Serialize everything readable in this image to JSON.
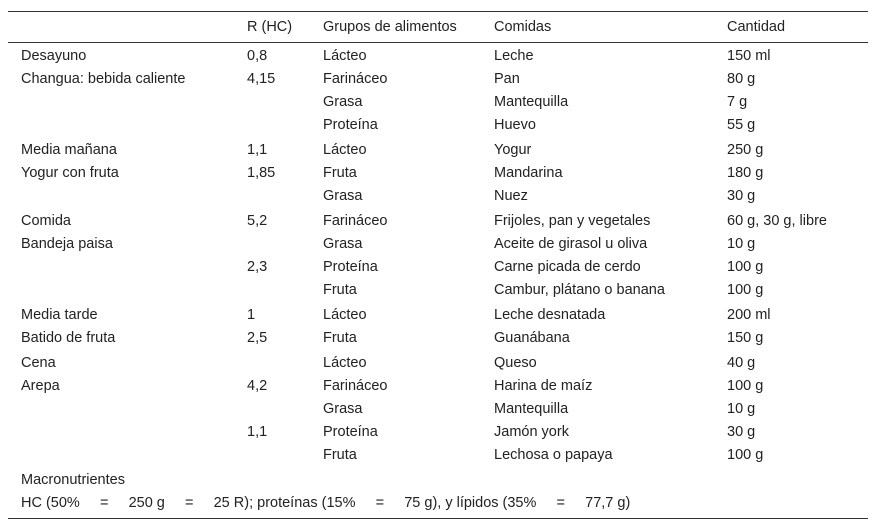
{
  "table": {
    "header": [
      null,
      "R (HC)",
      "Grupos de alimentos",
      "Comidas",
      "Cantidad"
    ],
    "rows": [
      [
        "Desayuno",
        "0,8",
        "Lácteo",
        "Leche",
        "150 ml"
      ],
      [
        "Changua: bebida caliente",
        "4,15",
        "Farináceo",
        "Pan",
        "80 g"
      ],
      [
        null,
        null,
        "Grasa",
        "Mantequilla",
        "7 g"
      ],
      [
        null,
        null,
        "Proteína",
        "Huevo",
        "55 g"
      ],
      [
        "Media mañana",
        "1,1",
        "Lácteo",
        "Yogur",
        "250 g"
      ],
      [
        "Yogur con fruta",
        "1,85",
        "Fruta",
        "Mandarina",
        "180 g"
      ],
      [
        null,
        null,
        "Grasa",
        "Nuez",
        "30 g"
      ],
      [
        "Comida",
        "5,2",
        "Farináceo",
        "Frijoles, pan y vegetales",
        "60 g, 30 g, libre"
      ],
      [
        "Bandeja paisa",
        null,
        "Grasa",
        "Aceite de girasol u oliva",
        "10 g"
      ],
      [
        null,
        "2,3",
        "Proteína",
        "Carne picada de cerdo",
        "100 g"
      ],
      [
        null,
        null,
        "Fruta",
        "Cambur, plátano o banana",
        "100 g"
      ],
      [
        "Media tarde",
        "1",
        "Lácteo",
        "Leche desnatada",
        "200 ml"
      ],
      [
        "Batido de fruta",
        "2,5",
        "Fruta",
        "Guanábana",
        "150 g"
      ],
      [
        "Cena",
        null,
        "Lácteo",
        "Queso",
        "40 g"
      ],
      [
        "Arepa",
        "4,2",
        "Farináceo",
        "Harina de maíz",
        "100 g"
      ],
      [
        null,
        null,
        "Grasa",
        "Mantequilla",
        "10 g"
      ],
      [
        null,
        "1,1",
        "Proteína",
        "Jamón york",
        "30 g"
      ],
      [
        null,
        null,
        "Fruta",
        "Lechosa o papaya",
        "100 g"
      ]
    ],
    "footer": [
      "Macronutrientes",
      "HC (50%     =     250 g     =     25 R); proteínas (15%     =     75 g), y lípidos (35%     =     77,7 g)"
    ]
  }
}
